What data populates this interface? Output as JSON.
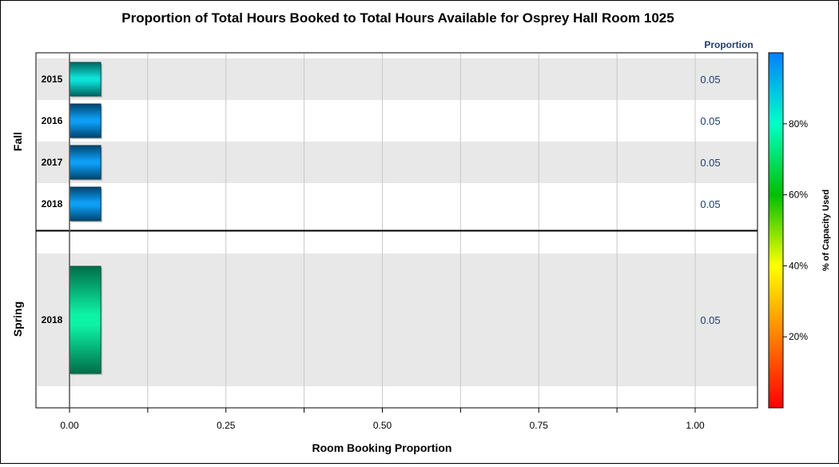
{
  "chart_data": {
    "type": "bar",
    "orientation": "horizontal",
    "title": "Proportion of Total Hours Booked to Total Hours Available for Osprey Hall Room 1025",
    "xlabel": "Room Booking Proportion",
    "xlim": [
      0,
      1.1
    ],
    "xticks": [
      0,
      0.25,
      0.5,
      0.75,
      1
    ],
    "xtick_labels": [
      "0.00",
      "0.25",
      "0.50",
      "0.75",
      "1.00"
    ],
    "value_column_header": "Proportion",
    "groups": [
      {
        "name": "Fall",
        "rows": [
          {
            "label": "2015",
            "value": 0.05,
            "value_label": "0.05",
            "capacity_pct": 85
          },
          {
            "label": "2016",
            "value": 0.05,
            "value_label": "0.05",
            "capacity_pct": 96
          },
          {
            "label": "2017",
            "value": 0.05,
            "value_label": "0.05",
            "capacity_pct": 96
          },
          {
            "label": "2018",
            "value": 0.05,
            "value_label": "0.05",
            "capacity_pct": 96
          }
        ]
      },
      {
        "name": "Spring",
        "rows": [
          {
            "label": "2018",
            "value": 0.05,
            "value_label": "0.05",
            "capacity_pct": 76
          }
        ]
      }
    ],
    "colorbar": {
      "title": "% of Capacity Used",
      "range": [
        0,
        100
      ],
      "ticks": [
        20,
        40,
        60,
        80
      ],
      "tick_labels": [
        "20%",
        "40%",
        "60%",
        "80%"
      ],
      "colors": [
        "#ff0000",
        "#ff8000",
        "#ffff00",
        "#00c000",
        "#00ffc8",
        "#0080ff"
      ]
    }
  }
}
